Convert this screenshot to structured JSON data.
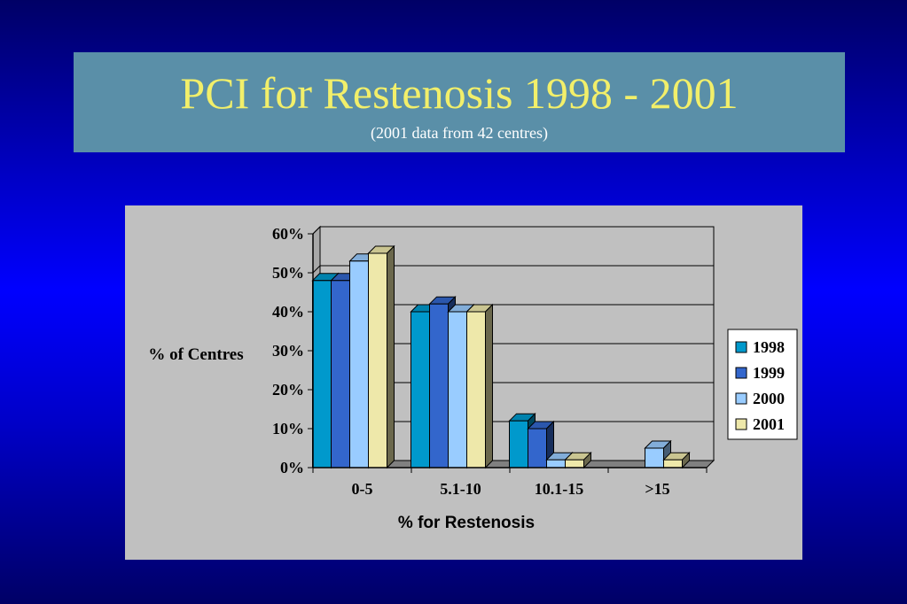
{
  "slide": {
    "title": "PCI for Restenosis 1998 - 2001",
    "subtitle": "(2001 data from 42 centres)"
  },
  "colors": {
    "background": "#0000ff",
    "title_box": "#5a8fa8",
    "title_text": "#f2ef6a",
    "chart_panel": "#c0c0c0",
    "series": [
      "#0099cc",
      "#3366cc",
      "#99ccff",
      "#eee8aa"
    ]
  },
  "chart_data": {
    "type": "bar",
    "title": "",
    "xlabel": "% for Restenosis",
    "ylabel": "% of Centres",
    "categories": [
      "0-5",
      "5.1-10",
      "10.1-15",
      ">15"
    ],
    "yticks": [
      "0%",
      "10%",
      "20%",
      "30%",
      "40%",
      "50%",
      "60%"
    ],
    "ylim": [
      0,
      60
    ],
    "grid": true,
    "legend_position": "right",
    "style": "3d-clustered-column",
    "series": [
      {
        "name": "1998",
        "values": [
          48,
          40,
          12,
          0
        ]
      },
      {
        "name": "1999",
        "values": [
          48,
          42,
          10,
          0
        ]
      },
      {
        "name": "2000",
        "values": [
          53,
          40,
          2,
          5
        ]
      },
      {
        "name": "2001",
        "values": [
          55,
          40,
          2,
          2
        ]
      }
    ]
  }
}
